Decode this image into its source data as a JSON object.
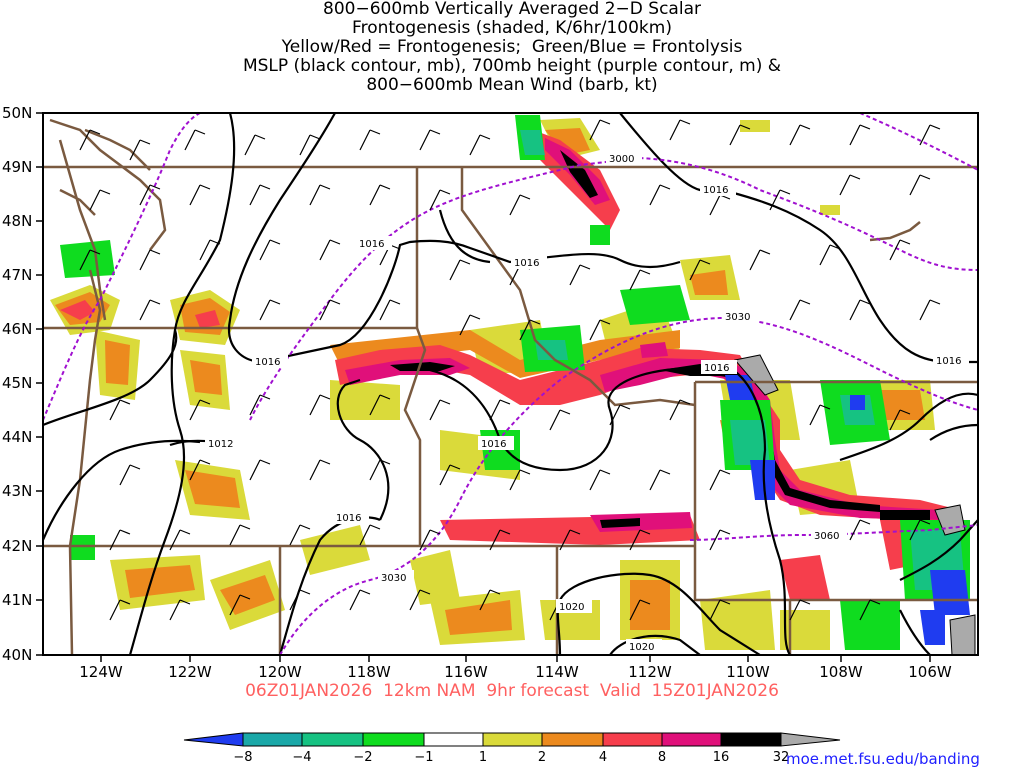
{
  "title_lines": [
    "800−600mb Vertically Averaged 2−D Scalar",
    "Frontogenesis (shaded, K/6hr/100km)",
    "Yellow/Red = Frontogenesis;  Green/Blue = Frontolysis",
    "MSLP (black contour, mb), 700mb height (purple contour, m) &",
    "800−600mb Mean Wind (barb, kt)"
  ],
  "lat_labels": [
    "50N",
    "49N",
    "48N",
    "47N",
    "46N",
    "45N",
    "44N",
    "43N",
    "42N",
    "41N",
    "40N"
  ],
  "lon_labels": [
    "124W",
    "122W",
    "120W",
    "118W",
    "116W",
    "114W",
    "112W",
    "110W",
    "108W",
    "106W"
  ],
  "mslp_labels": [
    "1016",
    "1016",
    "1016",
    "1016",
    "1016",
    "1016",
    "1016",
    "1012",
    "1016",
    "1020",
    "1020"
  ],
  "height_labels": [
    "3000",
    "3030",
    "3030",
    "3060"
  ],
  "footer": "06Z01JAN2026  12km NAM  9hr forecast  Valid  15Z01JAN2026",
  "credit": "moe.met.fsu.edu/banding",
  "colorbar": {
    "labels": [
      "−8",
      "−4",
      "−2",
      "−1",
      "1",
      "2",
      "4",
      "8",
      "16",
      "32"
    ],
    "colors": [
      "#1f3cf0",
      "#1aa8a8",
      "#16c282",
      "#0fdc1f",
      "#ffffff",
      "#dada3a",
      "#ec8a1e",
      "#f63e4c",
      "#e0107a",
      "#000000",
      "#aaaaaa"
    ]
  },
  "colors": {
    "mslp": "#000000",
    "height": "#a010d0",
    "borders": "#7a5a40",
    "valid_text": "#ff6060",
    "credit_text": "#2020ff"
  }
}
